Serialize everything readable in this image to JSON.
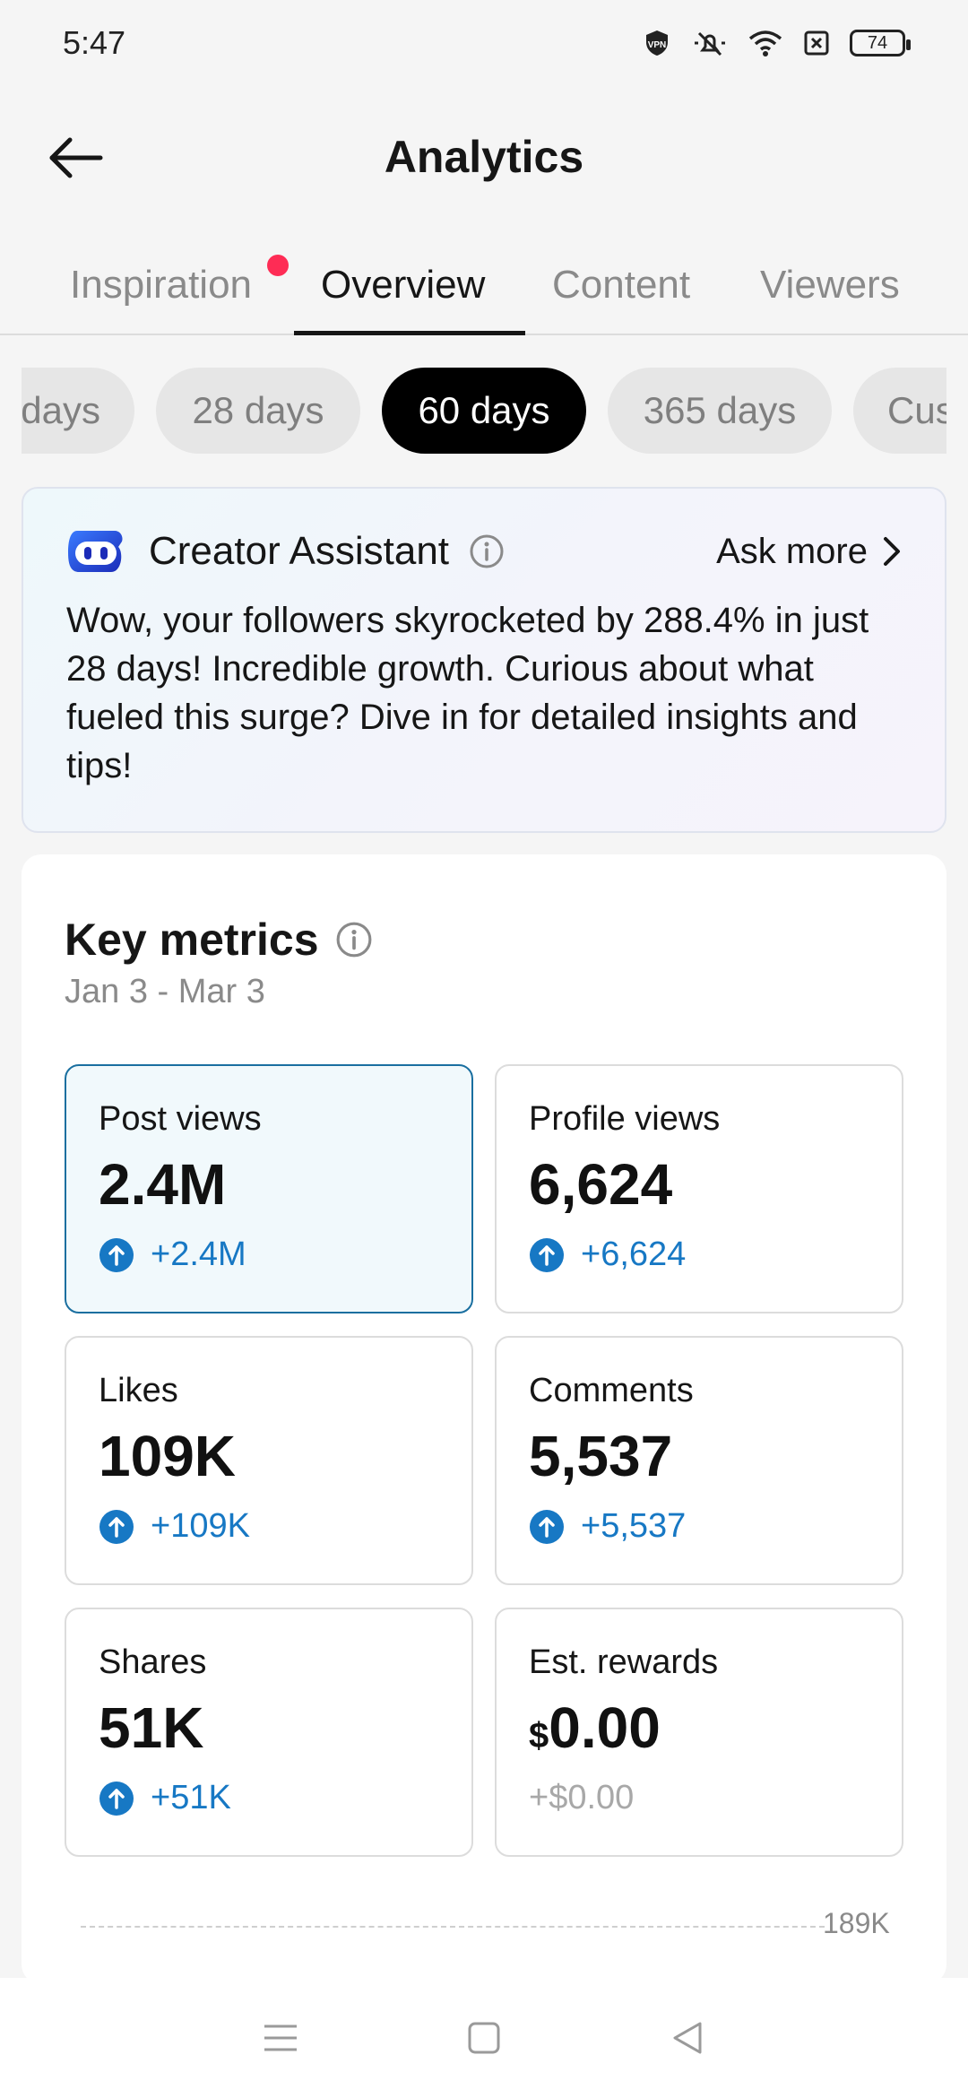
{
  "status_bar": {
    "time": "5:47",
    "battery": "74",
    "icons": [
      "vpn-icon",
      "mute-icon",
      "wifi-icon",
      "sim-off-icon",
      "battery-icon"
    ]
  },
  "header": {
    "title": "Analytics",
    "back_icon": "arrow-left-icon"
  },
  "tabs": [
    {
      "label": "Inspiration",
      "active": false,
      "notification_dot": true
    },
    {
      "label": "Overview",
      "active": true
    },
    {
      "label": "Content",
      "active": false
    },
    {
      "label": "Viewers",
      "active": false
    }
  ],
  "date_ranges": [
    {
      "label": "days",
      "active": false
    },
    {
      "label": "28 days",
      "active": false
    },
    {
      "label": "60 days",
      "active": true
    },
    {
      "label": "365 days",
      "active": false
    },
    {
      "label": "Cus",
      "active": false
    }
  ],
  "assistant": {
    "name": "Creator Assistant",
    "ask_more": "Ask more",
    "message": "Wow, your followers skyrocketed by 288.4% in just 28 days! Incredible growth. Curious about what fueled this surge? Dive in for detailed insights and tips!"
  },
  "key_metrics": {
    "title": "Key metrics",
    "range": "Jan 3 - Mar 3",
    "items": [
      {
        "label": "Post views",
        "value": "2.4M",
        "delta": "+2.4M",
        "selected": true
      },
      {
        "label": "Profile views",
        "value": "6,624",
        "delta": "+6,624"
      },
      {
        "label": "Likes",
        "value": "109K",
        "delta": "+109K"
      },
      {
        "label": "Comments",
        "value": "5,537",
        "delta": "+5,537"
      },
      {
        "label": "Shares",
        "value": "51K",
        "delta": "+51K"
      },
      {
        "label": "Est. rewards",
        "currency": "$",
        "value": "0.00",
        "delta": "+$0.00",
        "muted": true
      }
    ],
    "chart_max_label": "189K"
  },
  "colors": {
    "accent_blue": "#1778c4",
    "notification_red": "#fe2c55",
    "selected_border": "#1a6fa0"
  }
}
